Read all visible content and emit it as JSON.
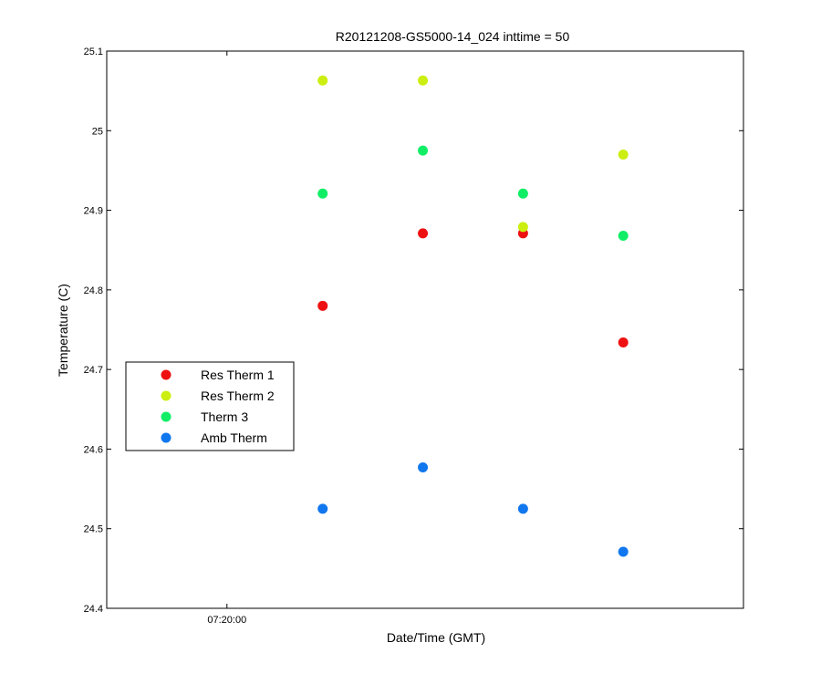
{
  "chart_data": {
    "type": "scatter",
    "title": "R20121208-GS5000-14_024 inttime = 50",
    "xlabel": "Date/Time (GMT)",
    "ylabel": "Temperature (C)",
    "x": [
      "07:20:43",
      "07:21:28",
      "07:22:13",
      "07:22:58"
    ],
    "xlim": [
      "07:19:06",
      "07:23:52"
    ],
    "ylim": [
      24.4,
      25.1
    ],
    "x_ticks": [
      "07:20:00"
    ],
    "y_ticks": [
      "24.4",
      "24.5",
      "24.6",
      "24.7",
      "24.8",
      "24.9",
      "25",
      "25.1"
    ],
    "grid": false,
    "legend": "middle-left",
    "series": [
      {
        "name": "Res Therm 1",
        "color": "#ee1111",
        "values": [
          24.78,
          24.871,
          24.871,
          24.734
        ]
      },
      {
        "name": "Res Therm 2",
        "color": "#ccee11",
        "values": [
          25.063,
          25.063,
          24.879,
          24.97
        ]
      },
      {
        "name": "Therm 3",
        "color": "#11ee66",
        "values": [
          24.921,
          24.975,
          24.921,
          24.868
        ]
      },
      {
        "name": "Amb Therm",
        "color": "#1177ee",
        "values": [
          24.525,
          24.577,
          24.525,
          24.471
        ]
      }
    ]
  }
}
